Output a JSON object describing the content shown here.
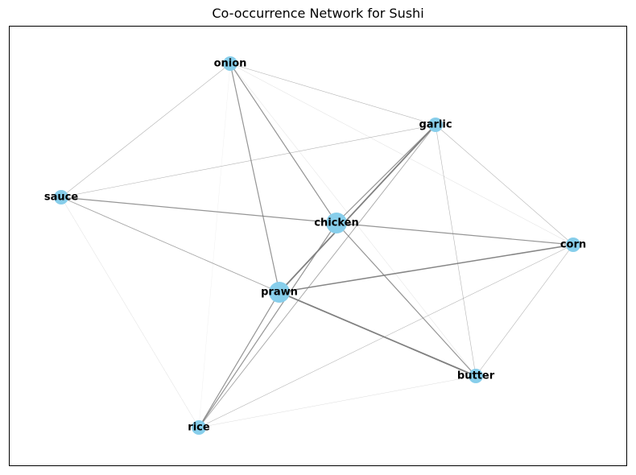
{
  "title": "Co-occurrence Network for Sushi",
  "colors": {
    "node": "#87ceeb",
    "edge": "#808080",
    "frame": "#000000"
  },
  "nodes": [
    {
      "id": "onion",
      "label": "onion",
      "weight": 1
    },
    {
      "id": "garlic",
      "label": "garlic",
      "weight": 1
    },
    {
      "id": "sauce",
      "label": "sauce",
      "weight": 1
    },
    {
      "id": "chicken",
      "label": "chicken",
      "weight": 2
    },
    {
      "id": "corn",
      "label": "corn",
      "weight": 1
    },
    {
      "id": "prawn",
      "label": "prawn",
      "weight": 2
    },
    {
      "id": "butter",
      "label": "butter",
      "weight": 1
    },
    {
      "id": "rice",
      "label": "rice",
      "weight": 1
    }
  ],
  "edges": [
    {
      "source": "onion",
      "target": "garlic",
      "weight": 2
    },
    {
      "source": "onion",
      "target": "sauce",
      "weight": 2
    },
    {
      "source": "onion",
      "target": "chicken",
      "weight": 4
    },
    {
      "source": "onion",
      "target": "prawn",
      "weight": 4
    },
    {
      "source": "onion",
      "target": "corn",
      "weight": 1
    },
    {
      "source": "onion",
      "target": "butter",
      "weight": 1
    },
    {
      "source": "onion",
      "target": "rice",
      "weight": 0.5
    },
    {
      "source": "garlic",
      "target": "sauce",
      "weight": 2
    },
    {
      "source": "garlic",
      "target": "chicken",
      "weight": 4
    },
    {
      "source": "garlic",
      "target": "prawn",
      "weight": 6
    },
    {
      "source": "garlic",
      "target": "corn",
      "weight": 2
    },
    {
      "source": "garlic",
      "target": "butter",
      "weight": 2
    },
    {
      "source": "garlic",
      "target": "rice",
      "weight": 3
    },
    {
      "source": "sauce",
      "target": "chicken",
      "weight": 4
    },
    {
      "source": "sauce",
      "target": "prawn",
      "weight": 3
    },
    {
      "source": "sauce",
      "target": "rice",
      "weight": 1
    },
    {
      "source": "chicken",
      "target": "corn",
      "weight": 4
    },
    {
      "source": "chicken",
      "target": "butter",
      "weight": 4
    },
    {
      "source": "chicken",
      "target": "rice",
      "weight": 4
    },
    {
      "source": "prawn",
      "target": "corn",
      "weight": 5
    },
    {
      "source": "prawn",
      "target": "butter",
      "weight": 6
    },
    {
      "source": "prawn",
      "target": "rice",
      "weight": 4
    },
    {
      "source": "corn",
      "target": "butter",
      "weight": 2
    },
    {
      "source": "corn",
      "target": "rice",
      "weight": 2
    },
    {
      "source": "butter",
      "target": "rice",
      "weight": 1
    }
  ]
}
